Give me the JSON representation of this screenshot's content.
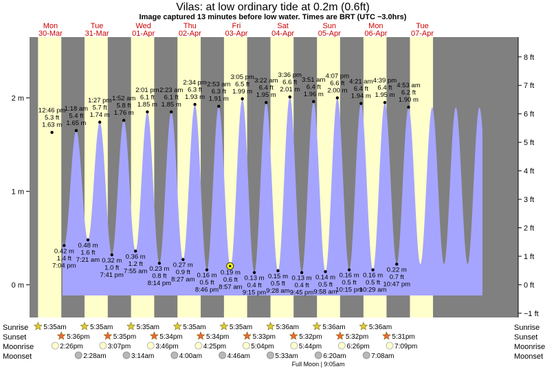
{
  "title": "Vilas: at low  ordinary tide at 0.2m (0.6ft)",
  "subtitle": "Image captured 13 minutes before low water. Times are BRT (UTC −3.0hrs)",
  "colors": {
    "night": "#808080",
    "day": "#ffffcc",
    "water": "#a5a5ff",
    "day_label": "#cc0000",
    "sunrise_star": "#ddcc33",
    "sunset_star": "#ee6633",
    "moonrise": "#ffffcc",
    "moonset": "#b8b8b8",
    "current_marker": "#ffff00"
  },
  "chart_data": {
    "type": "area",
    "x_unit": "hours since 30-Mar 00:00 (BRT)",
    "y_unit": "m",
    "ylim": [
      -0.35,
      2.65
    ],
    "xlim": [
      1.2,
      253.5
    ],
    "left_axis": {
      "ticks": [
        0,
        1,
        2
      ],
      "labels": [
        "0 m",
        "1 m",
        "2 m"
      ]
    },
    "right_axis": {
      "ticks_ft": [
        -1,
        0,
        1,
        2,
        3,
        4,
        5,
        6,
        7,
        8
      ],
      "labels": [
        "−1 ft",
        "0 ft",
        "1 ft",
        "2 ft",
        "3 ft",
        "4 ft",
        "5 ft",
        "6 ft",
        "7 ft",
        "8 ft"
      ],
      "ft_per_m": 3.28084
    },
    "days": [
      {
        "dow": "Mon",
        "date": "30-Mar",
        "hour": 12
      },
      {
        "dow": "Tue",
        "date": "31-Mar",
        "hour": 36
      },
      {
        "dow": "Wed",
        "date": "01-Apr",
        "hour": 60
      },
      {
        "dow": "Thu",
        "date": "02-Apr",
        "hour": 84
      },
      {
        "dow": "Fri",
        "date": "03-Apr",
        "hour": 108
      },
      {
        "dow": "Sat",
        "date": "04-Apr",
        "hour": 132
      },
      {
        "dow": "Sun",
        "date": "05-Apr",
        "hour": 156
      },
      {
        "dow": "Mon",
        "date": "06-Apr",
        "hour": 180
      },
      {
        "dow": "Tue",
        "date": "07-Apr",
        "hour": 204
      }
    ],
    "daylight": [
      {
        "rise": 5.583,
        "set": 17.6
      },
      {
        "rise": 29.583,
        "set": 41.583
      },
      {
        "rise": 53.583,
        "set": 65.567
      },
      {
        "rise": 77.583,
        "set": 89.567
      },
      {
        "rise": 101.583,
        "set": 113.55
      },
      {
        "rise": 125.6,
        "set": 137.533
      },
      {
        "rise": 149.6,
        "set": 161.533
      },
      {
        "rise": 173.6,
        "set": 185.517
      },
      {
        "rise": 197.6,
        "set": 209.517
      }
    ],
    "extremes": [
      {
        "type": "high",
        "hour": 12.767,
        "time": "12:46 pm",
        "ft": "5.3 ft",
        "m": "1.63 m",
        "value": 1.63
      },
      {
        "type": "low",
        "hour": 19.067,
        "time": "7:04 pm",
        "ft": "1.4 ft",
        "m": "0.42 m",
        "value": 0.42
      },
      {
        "type": "high",
        "hour": 25.3,
        "time": "1:18 am",
        "ft": "5.4 ft",
        "m": "1.65 m",
        "value": 1.65
      },
      {
        "type": "low",
        "hour": 31.35,
        "time": "7:21 am",
        "ft": "1.6 ft",
        "m": "0.48 m",
        "value": 0.48
      },
      {
        "type": "high",
        "hour": 37.45,
        "time": "1:27 pm",
        "ft": "5.7 ft",
        "m": "1.74 m",
        "value": 1.74
      },
      {
        "type": "low",
        "hour": 43.683,
        "time": "7:41 pm",
        "ft": "1.0 ft",
        "m": "0.32 m",
        "value": 0.32
      },
      {
        "type": "high",
        "hour": 49.867,
        "time": "1:52 am",
        "ft": "5.8 ft",
        "m": "1.76 m",
        "value": 1.76
      },
      {
        "type": "low",
        "hour": 55.917,
        "time": "7:55 am",
        "ft": "1.2 ft",
        "m": "0.36 m",
        "value": 0.36
      },
      {
        "type": "high",
        "hour": 62.017,
        "time": "2:01 pm",
        "ft": "6.1 ft",
        "m": "1.85 m",
        "value": 1.85
      },
      {
        "type": "low",
        "hour": 68.233,
        "time": "8:14 pm",
        "ft": "0.8 ft",
        "m": "0.23 m",
        "value": 0.23
      },
      {
        "type": "high",
        "hour": 74.383,
        "time": "2:23 am",
        "ft": "6.1 ft",
        "m": "1.85 m",
        "value": 1.85
      },
      {
        "type": "low",
        "hour": 80.45,
        "time": "8:27 am",
        "ft": "0.9 ft",
        "m": "0.27 m",
        "value": 0.27
      },
      {
        "type": "high",
        "hour": 86.567,
        "time": "2:34 pm",
        "ft": "6.3 ft",
        "m": "1.93 m",
        "value": 1.93
      },
      {
        "type": "low",
        "hour": 92.767,
        "time": "8:46 pm",
        "ft": "0.5 ft",
        "m": "0.16 m",
        "value": 0.16
      },
      {
        "type": "high",
        "hour": 98.883,
        "time": "2:53 am",
        "ft": "6.3 ft",
        "m": "1.91 m",
        "value": 1.91
      },
      {
        "type": "low",
        "hour": 104.95,
        "time": "8:57 am",
        "ft": "0.6 ft",
        "m": "0.19 m",
        "value": 0.19
      },
      {
        "type": "high",
        "hour": 111.083,
        "time": "3:05 pm",
        "ft": "6.5 ft",
        "m": "1.99 m",
        "value": 1.99
      },
      {
        "type": "low",
        "hour": 117.25,
        "time": "9:15 pm",
        "ft": "0.4 ft",
        "m": "0.13 m",
        "value": 0.13
      },
      {
        "type": "high",
        "hour": 123.367,
        "time": "3:22 am",
        "ft": "6.4 ft",
        "m": "1.95 m",
        "value": 1.95
      },
      {
        "type": "low",
        "hour": 129.467,
        "time": "9:28 am",
        "ft": "0.5 ft",
        "m": "0.15 m",
        "value": 0.15
      },
      {
        "type": "high",
        "hour": 135.6,
        "time": "3:36 pm",
        "ft": "6.6 ft",
        "m": "2.01 m",
        "value": 2.01
      },
      {
        "type": "low",
        "hour": 141.75,
        "time": "9:45 pm",
        "ft": "0.4 ft",
        "m": "0.13 m",
        "value": 0.13
      },
      {
        "type": "high",
        "hour": 147.85,
        "time": "3:51 am",
        "ft": "6.4 ft",
        "m": "1.96 m",
        "value": 1.96
      },
      {
        "type": "low",
        "hour": 153.967,
        "time": "9:58 am",
        "ft": "0.5 ft",
        "m": "0.14 m",
        "value": 0.14
      },
      {
        "type": "high",
        "hour": 160.117,
        "time": "4:07 pm",
        "ft": "6.6 ft",
        "m": "2.00 m",
        "value": 2.0
      },
      {
        "type": "low",
        "hour": 166.25,
        "time": "10:15 pm",
        "ft": "0.5 ft",
        "m": "0.16 m",
        "value": 0.16
      },
      {
        "type": "high",
        "hour": 172.35,
        "time": "4:21 am",
        "ft": "6.4 ft",
        "m": "1.94 m",
        "value": 1.94
      },
      {
        "type": "low",
        "hour": 178.483,
        "time": "10:29 am",
        "ft": "0.5 ft",
        "m": "0.16 m",
        "value": 0.16
      },
      {
        "type": "high",
        "hour": 184.65,
        "time": "4:39 pm",
        "ft": "6.4 ft",
        "m": "1.95 m",
        "value": 1.95
      },
      {
        "type": "low",
        "hour": 190.783,
        "time": "10:47 pm",
        "ft": "0.7 ft",
        "m": "0.22 m",
        "value": 0.22
      },
      {
        "type": "high",
        "hour": 196.883,
        "time": "4:53 am",
        "ft": "6.2 ft",
        "m": "1.90 m",
        "value": 1.9
      }
    ],
    "current": {
      "hour": 104.733,
      "value": 0.2
    }
  },
  "astro": {
    "row_labels": {
      "sunrise": "Sunrise",
      "sunset": "Sunset",
      "moonrise": "Moonrise",
      "moonset": "Moonset"
    },
    "sunrise": [
      {
        "hour": 5.583,
        "label": "5:35am"
      },
      {
        "hour": 29.583,
        "label": "5:35am"
      },
      {
        "hour": 53.583,
        "label": "5:35am"
      },
      {
        "hour": 77.583,
        "label": "5:35am"
      },
      {
        "hour": 101.583,
        "label": "5:35am"
      },
      {
        "hour": 125.6,
        "label": "5:36am"
      },
      {
        "hour": 149.6,
        "label": "5:36am"
      },
      {
        "hour": 173.6,
        "label": "5:36am"
      }
    ],
    "sunset": [
      {
        "hour": 17.6,
        "label": "5:36pm"
      },
      {
        "hour": 41.583,
        "label": "5:35pm"
      },
      {
        "hour": 65.567,
        "label": "5:34pm"
      },
      {
        "hour": 89.567,
        "label": "5:34pm"
      },
      {
        "hour": 113.55,
        "label": "5:33pm"
      },
      {
        "hour": 137.533,
        "label": "5:32pm"
      },
      {
        "hour": 161.533,
        "label": "5:32pm"
      },
      {
        "hour": 185.517,
        "label": "5:31pm"
      }
    ],
    "moonrise": [
      {
        "hour": 14.433,
        "label": "2:26pm"
      },
      {
        "hour": 39.117,
        "label": "3:07pm"
      },
      {
        "hour": 63.767,
        "label": "3:46pm"
      },
      {
        "hour": 88.417,
        "label": "4:25pm"
      },
      {
        "hour": 113.067,
        "label": "5:04pm"
      },
      {
        "hour": 137.733,
        "label": "5:44pm"
      },
      {
        "hour": 162.433,
        "label": "6:26pm"
      },
      {
        "hour": 187.15,
        "label": "7:09pm"
      }
    ],
    "moonset": [
      {
        "hour": 26.467,
        "label": "2:28am"
      },
      {
        "hour": 51.233,
        "label": "3:14am"
      },
      {
        "hour": 76.0,
        "label": "4:00am"
      },
      {
        "hour": 100.767,
        "label": "4:46am"
      },
      {
        "hour": 125.55,
        "label": "5:33am"
      },
      {
        "hour": 150.333,
        "label": "6:20am"
      },
      {
        "hour": 175.133,
        "label": "7:08am"
      }
    ],
    "moon_phase_note": "Full Moon | 9:05am"
  }
}
